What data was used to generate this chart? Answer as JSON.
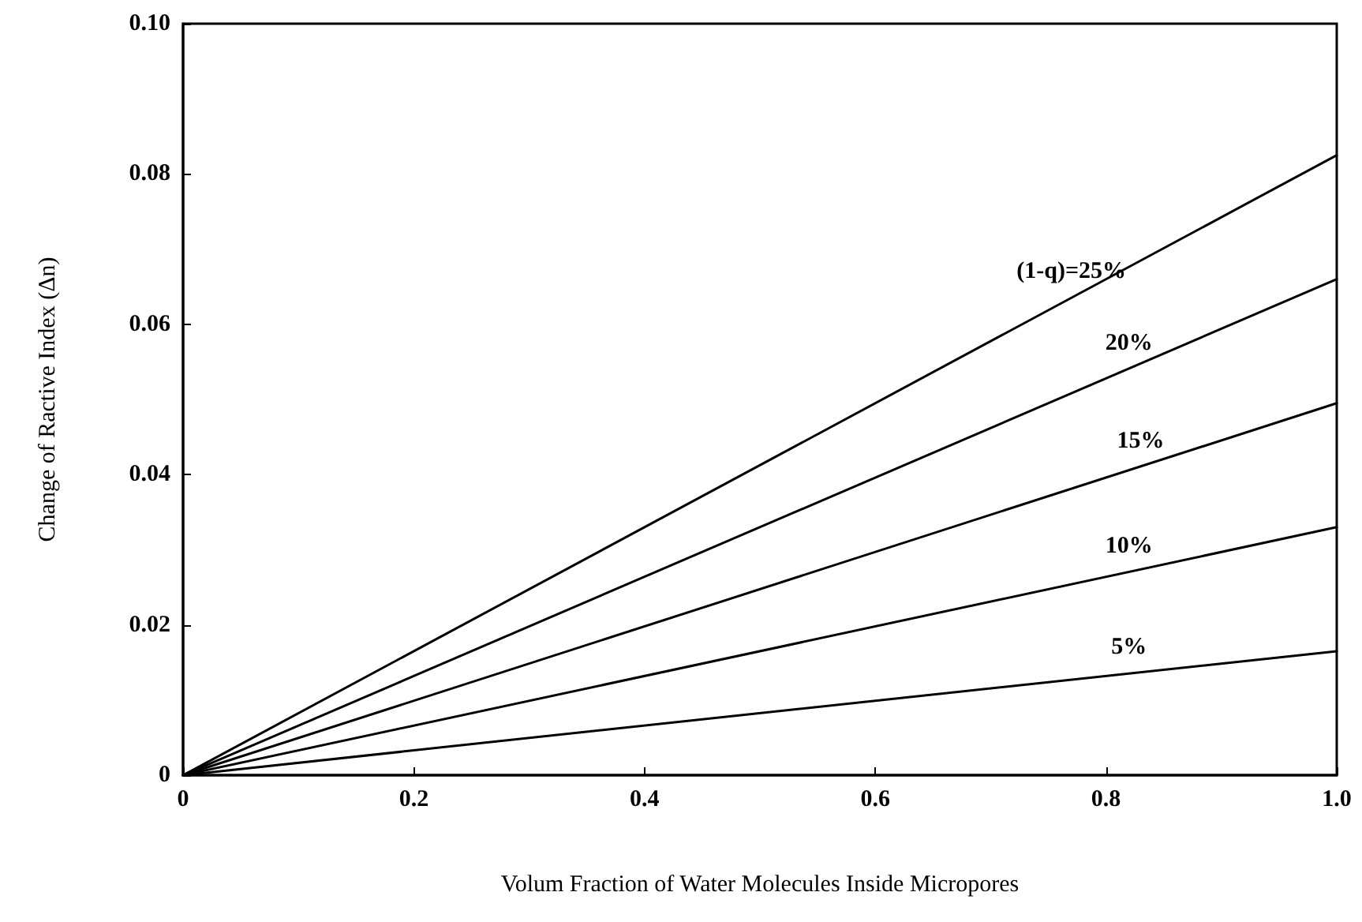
{
  "chart_data": {
    "type": "line",
    "xlabel": "Volum Fraction of Water Molecules Inside Micropores",
    "ylabel": "Change of Ractive Index (Δn)",
    "series": [
      {
        "color": "#000000",
        "values": [
          0,
          0.0825
        ]
      },
      {
        "color": "#000000",
        "values": [
          0,
          0.066
        ]
      },
      {
        "color": "#000000",
        "values": [
          0,
          0.0495
        ]
      },
      {
        "color": "#000000",
        "values": [
          0,
          0.033
        ]
      },
      {
        "color": "#000000",
        "values": [
          0,
          0.0165
        ]
      }
    ],
    "x": [
      0,
      1
    ],
    "xlim": [
      0,
      1
    ],
    "xticks": [
      0,
      0.2,
      0.4,
      0.6,
      0.8,
      {
        "value": 1,
        "label": "1.0"
      }
    ],
    "ylim": [
      0,
      0.1
    ],
    "yticks": [
      0,
      0.02,
      0.04,
      0.06,
      0.08,
      {
        "value": 0.1,
        "label": "0.10"
      }
    ],
    "grid": false,
    "marker": "none",
    "line_style": "solid",
    "annotations": [
      {
        "text": "(1-q)=25%",
        "x": 0.77,
        "y": 0.0635
      },
      {
        "text": "20%",
        "x": 0.82,
        "y": 0.054
      },
      {
        "text": "15%",
        "x": 0.83,
        "y": 0.041
      },
      {
        "text": "10%",
        "x": 0.82,
        "y": 0.027
      },
      {
        "text": "5%",
        "x": 0.82,
        "y": 0.0135
      }
    ]
  }
}
